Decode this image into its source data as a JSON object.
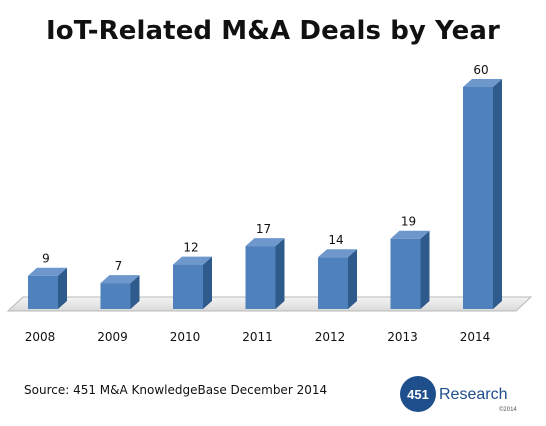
{
  "chart_data": {
    "type": "bar",
    "title": "IoT-Related M&A Deals by Year",
    "xlabel": "",
    "ylabel": "",
    "categories": [
      "2008",
      "2009",
      "2010",
      "2011",
      "2012",
      "2013",
      "2014"
    ],
    "values": [
      9,
      7,
      12,
      17,
      14,
      19,
      60
    ],
    "data_labels": [
      "9",
      "7",
      "12",
      "17",
      "14",
      "19",
      "60"
    ],
    "ylim": [
      0,
      60
    ],
    "grid": false,
    "legend": "none",
    "bar_color": "#4f81bd",
    "bar_dark_color": "#2f5b8c",
    "bar_top_color": "#6e97cc",
    "floor_color": "#e8e8e8"
  },
  "source_note": "Source: 451 M&A KnowledgeBase December 2014",
  "logo": {
    "badge_text": "451",
    "name_text": "Research",
    "small_text": "©2014",
    "badge_color": "#1f4e8c",
    "name_color": "#1f4e8c"
  }
}
